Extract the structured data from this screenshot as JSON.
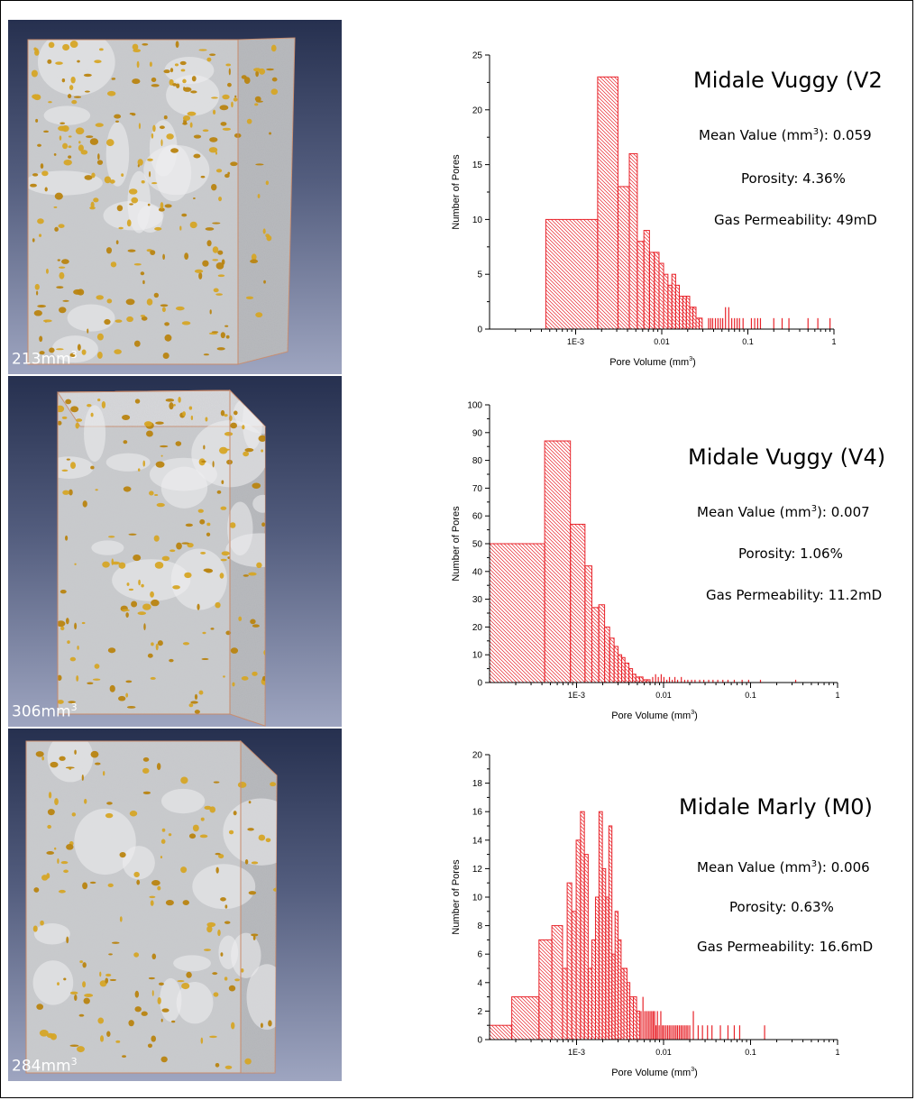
{
  "samples": [
    {
      "name": "Midale Vuggy (V2",
      "volume_label": "213mm",
      "volume_exp": "3",
      "mean_label": "Mean Value (mm",
      "mean_exp": "3",
      "mean_value": "): 0.059",
      "porosity": "Porosity: 4.36%",
      "permeability": "Gas Permeability: 49mD"
    },
    {
      "name": "Midale Vuggy (V4)",
      "volume_label": "306mm",
      "volume_exp": "3",
      "mean_label": "Mean Value (mm",
      "mean_exp": "3",
      "mean_value": "): 0.007",
      "porosity": "Porosity: 1.06%",
      "permeability": "Gas Permeability: 11.2mD"
    },
    {
      "name": "Midale Marly (M0)",
      "volume_label": "284mm",
      "volume_exp": "3",
      "mean_label": "Mean Value (mm",
      "mean_exp": "3",
      "mean_value": "): 0.006",
      "porosity": "Porosity: 0.63%",
      "permeability": "Gas Permeability: 16.6mD"
    }
  ],
  "colors": {
    "bar": "#e8232a",
    "sky_top": "#26304f",
    "sky_bottom": "#9ea5c0",
    "pore": "#d6a526"
  },
  "chart_data": [
    {
      "type": "bar",
      "xlabel": "Pore Volume (mm",
      "xlabel_exp": "3",
      "xlabel_end": ")",
      "ylabel": "Number of Pores",
      "x_scale": "log",
      "xlim": [
        0.0001,
        1
      ],
      "ylim": [
        0,
        25
      ],
      "yticks": [
        0,
        5,
        10,
        15,
        20,
        25
      ],
      "xticks": [
        {
          "v": 0.001,
          "label": "1E-3"
        },
        {
          "v": 0.01,
          "label": "0.01"
        },
        {
          "v": 0.1,
          "label": "0.1"
        },
        {
          "v": 1,
          "label": "1"
        }
      ],
      "bins": [
        {
          "x0": 0.00045,
          "x1": 0.0018,
          "y": 10
        },
        {
          "x0": 0.0018,
          "x1": 0.0031,
          "y": 23
        },
        {
          "x0": 0.0031,
          "x1": 0.0042,
          "y": 13
        },
        {
          "x0": 0.0042,
          "x1": 0.0052,
          "y": 16
        },
        {
          "x0": 0.0052,
          "x1": 0.0062,
          "y": 8
        },
        {
          "x0": 0.0062,
          "x1": 0.0072,
          "y": 9
        },
        {
          "x0": 0.0072,
          "x1": 0.0082,
          "y": 7
        },
        {
          "x0": 0.0082,
          "x1": 0.0093,
          "y": 7
        },
        {
          "x0": 0.0093,
          "x1": 0.0105,
          "y": 6
        },
        {
          "x0": 0.0105,
          "x1": 0.0118,
          "y": 5
        },
        {
          "x0": 0.0118,
          "x1": 0.0131,
          "y": 4
        },
        {
          "x0": 0.0131,
          "x1": 0.0145,
          "y": 5
        },
        {
          "x0": 0.0145,
          "x1": 0.016,
          "y": 4
        },
        {
          "x0": 0.016,
          "x1": 0.0176,
          "y": 3
        },
        {
          "x0": 0.0176,
          "x1": 0.0193,
          "y": 3
        },
        {
          "x0": 0.0193,
          "x1": 0.0211,
          "y": 3
        },
        {
          "x0": 0.0211,
          "x1": 0.023,
          "y": 2
        },
        {
          "x0": 0.023,
          "x1": 0.025,
          "y": 2
        },
        {
          "x0": 0.025,
          "x1": 0.0272,
          "y": 1
        },
        {
          "x0": 0.0272,
          "x1": 0.0295,
          "y": 1
        }
      ],
      "spikes": [
        {
          "x": 0.035,
          "y": 1
        },
        {
          "x": 0.037,
          "y": 1
        },
        {
          "x": 0.039,
          "y": 1
        },
        {
          "x": 0.042,
          "y": 1
        },
        {
          "x": 0.045,
          "y": 1
        },
        {
          "x": 0.048,
          "y": 1
        },
        {
          "x": 0.051,
          "y": 1
        },
        {
          "x": 0.055,
          "y": 2
        },
        {
          "x": 0.06,
          "y": 2
        },
        {
          "x": 0.065,
          "y": 1
        },
        {
          "x": 0.07,
          "y": 1
        },
        {
          "x": 0.075,
          "y": 1
        },
        {
          "x": 0.08,
          "y": 1
        },
        {
          "x": 0.088,
          "y": 1
        },
        {
          "x": 0.11,
          "y": 1
        },
        {
          "x": 0.12,
          "y": 1
        },
        {
          "x": 0.13,
          "y": 1
        },
        {
          "x": 0.14,
          "y": 1
        },
        {
          "x": 0.2,
          "y": 1
        },
        {
          "x": 0.25,
          "y": 1
        },
        {
          "x": 0.3,
          "y": 1
        },
        {
          "x": 0.5,
          "y": 1
        },
        {
          "x": 0.65,
          "y": 1
        },
        {
          "x": 0.9,
          "y": 1
        }
      ]
    },
    {
      "type": "bar",
      "xlabel": "Pore Volume (mm",
      "xlabel_exp": "3",
      "xlabel_end": ")",
      "ylabel": "Number of Pores",
      "x_scale": "log",
      "xlim": [
        0.0001,
        1
      ],
      "ylim": [
        0,
        100
      ],
      "yticks": [
        0,
        10,
        20,
        30,
        40,
        50,
        60,
        70,
        80,
        90,
        100
      ],
      "xticks": [
        {
          "v": 0.001,
          "label": "1E-3"
        },
        {
          "v": 0.01,
          "label": "0.01"
        },
        {
          "v": 0.1,
          "label": "0.1"
        },
        {
          "v": 1,
          "label": "1"
        }
      ],
      "bins": [
        {
          "x0": 0.0001,
          "x1": 0.00043,
          "y": 50
        },
        {
          "x0": 0.00043,
          "x1": 0.00085,
          "y": 87
        },
        {
          "x0": 0.00085,
          "x1": 0.00125,
          "y": 57
        },
        {
          "x0": 0.00125,
          "x1": 0.0015,
          "y": 42
        },
        {
          "x0": 0.0015,
          "x1": 0.0018,
          "y": 27
        },
        {
          "x0": 0.0018,
          "x1": 0.0021,
          "y": 28
        },
        {
          "x0": 0.0021,
          "x1": 0.0024,
          "y": 20
        },
        {
          "x0": 0.0024,
          "x1": 0.0027,
          "y": 16
        },
        {
          "x0": 0.0027,
          "x1": 0.003,
          "y": 13
        },
        {
          "x0": 0.003,
          "x1": 0.0033,
          "y": 10
        },
        {
          "x0": 0.0033,
          "x1": 0.0036,
          "y": 9
        },
        {
          "x0": 0.0036,
          "x1": 0.004,
          "y": 7
        },
        {
          "x0": 0.004,
          "x1": 0.0044,
          "y": 5
        },
        {
          "x0": 0.0044,
          "x1": 0.0048,
          "y": 3
        },
        {
          "x0": 0.0048,
          "x1": 0.0053,
          "y": 2
        },
        {
          "x0": 0.0053,
          "x1": 0.0058,
          "y": 2
        },
        {
          "x0": 0.0058,
          "x1": 0.0064,
          "y": 1
        },
        {
          "x0": 0.0064,
          "x1": 0.007,
          "y": 1
        }
      ],
      "spikes": [
        {
          "x": 0.0075,
          "y": 2
        },
        {
          "x": 0.0081,
          "y": 3
        },
        {
          "x": 0.0087,
          "y": 2
        },
        {
          "x": 0.0094,
          "y": 3
        },
        {
          "x": 0.0101,
          "y": 2
        },
        {
          "x": 0.0109,
          "y": 1
        },
        {
          "x": 0.0117,
          "y": 2
        },
        {
          "x": 0.0126,
          "y": 1
        },
        {
          "x": 0.0135,
          "y": 2
        },
        {
          "x": 0.0145,
          "y": 1
        },
        {
          "x": 0.016,
          "y": 2
        },
        {
          "x": 0.0175,
          "y": 1
        },
        {
          "x": 0.019,
          "y": 1
        },
        {
          "x": 0.021,
          "y": 1
        },
        {
          "x": 0.023,
          "y": 1
        },
        {
          "x": 0.026,
          "y": 1
        },
        {
          "x": 0.029,
          "y": 1
        },
        {
          "x": 0.033,
          "y": 1
        },
        {
          "x": 0.037,
          "y": 1
        },
        {
          "x": 0.042,
          "y": 1
        },
        {
          "x": 0.048,
          "y": 1
        },
        {
          "x": 0.055,
          "y": 1
        },
        {
          "x": 0.065,
          "y": 1
        },
        {
          "x": 0.08,
          "y": 1
        },
        {
          "x": 0.095,
          "y": 1
        },
        {
          "x": 0.13,
          "y": 1
        },
        {
          "x": 0.33,
          "y": 1
        }
      ]
    },
    {
      "type": "bar",
      "xlabel": "Pore Volume (mm",
      "xlabel_exp": "3",
      "xlabel_end": ")",
      "ylabel": "Number of Pores",
      "x_scale": "log",
      "xlim": [
        0.0001,
        1
      ],
      "ylim": [
        0,
        20
      ],
      "yticks": [
        0,
        2,
        4,
        6,
        8,
        10,
        12,
        14,
        16,
        18,
        20
      ],
      "xticks": [
        {
          "v": 0.001,
          "label": "1E-3"
        },
        {
          "v": 0.01,
          "label": "0.01"
        },
        {
          "v": 0.1,
          "label": "0.1"
        },
        {
          "v": 1,
          "label": "1"
        }
      ],
      "bins": [
        {
          "x0": 0.0001,
          "x1": 0.00018,
          "y": 1
        },
        {
          "x0": 0.00018,
          "x1": 0.00037,
          "y": 3
        },
        {
          "x0": 0.00037,
          "x1": 0.00052,
          "y": 7
        },
        {
          "x0": 0.00052,
          "x1": 0.00069,
          "y": 8
        },
        {
          "x0": 0.00069,
          "x1": 0.00078,
          "y": 5
        },
        {
          "x0": 0.00078,
          "x1": 0.00088,
          "y": 11
        },
        {
          "x0": 0.00088,
          "x1": 0.00099,
          "y": 9
        },
        {
          "x0": 0.00099,
          "x1": 0.00111,
          "y": 14
        },
        {
          "x0": 0.00111,
          "x1": 0.00123,
          "y": 16
        },
        {
          "x0": 0.00123,
          "x1": 0.00136,
          "y": 13
        },
        {
          "x0": 0.00136,
          "x1": 0.0015,
          "y": 5
        },
        {
          "x0": 0.0015,
          "x1": 0.00165,
          "y": 7
        },
        {
          "x0": 0.00165,
          "x1": 0.00181,
          "y": 10
        },
        {
          "x0": 0.00181,
          "x1": 0.00198,
          "y": 16
        },
        {
          "x0": 0.00198,
          "x1": 0.00216,
          "y": 12
        },
        {
          "x0": 0.00216,
          "x1": 0.00235,
          "y": 10
        },
        {
          "x0": 0.00235,
          "x1": 0.00255,
          "y": 15
        },
        {
          "x0": 0.00255,
          "x1": 0.00277,
          "y": 6
        },
        {
          "x0": 0.00277,
          "x1": 0.003,
          "y": 9
        },
        {
          "x0": 0.003,
          "x1": 0.00325,
          "y": 7
        },
        {
          "x0": 0.00325,
          "x1": 0.0035,
          "y": 5
        },
        {
          "x0": 0.0035,
          "x1": 0.0038,
          "y": 5
        },
        {
          "x0": 0.0038,
          "x1": 0.0041,
          "y": 4
        },
        {
          "x0": 0.0041,
          "x1": 0.0045,
          "y": 3
        },
        {
          "x0": 0.0045,
          "x1": 0.0049,
          "y": 3
        },
        {
          "x0": 0.0049,
          "x1": 0.0053,
          "y": 2
        }
      ],
      "spikes": [
        {
          "x": 0.0055,
          "y": 2
        },
        {
          "x": 0.0058,
          "y": 3
        },
        {
          "x": 0.0061,
          "y": 2
        },
        {
          "x": 0.0064,
          "y": 2
        },
        {
          "x": 0.0067,
          "y": 2
        },
        {
          "x": 0.007,
          "y": 2
        },
        {
          "x": 0.0073,
          "y": 2
        },
        {
          "x": 0.0076,
          "y": 2
        },
        {
          "x": 0.0079,
          "y": 2
        },
        {
          "x": 0.0082,
          "y": 1
        },
        {
          "x": 0.0085,
          "y": 2
        },
        {
          "x": 0.0089,
          "y": 1
        },
        {
          "x": 0.0093,
          "y": 2
        },
        {
          "x": 0.0097,
          "y": 1
        },
        {
          "x": 0.0101,
          "y": 1
        },
        {
          "x": 0.0106,
          "y": 1
        },
        {
          "x": 0.0111,
          "y": 1
        },
        {
          "x": 0.0116,
          "y": 1
        },
        {
          "x": 0.0121,
          "y": 1
        },
        {
          "x": 0.0127,
          "y": 1
        },
        {
          "x": 0.0133,
          "y": 1
        },
        {
          "x": 0.0139,
          "y": 1
        },
        {
          "x": 0.0145,
          "y": 1
        },
        {
          "x": 0.0152,
          "y": 1
        },
        {
          "x": 0.0159,
          "y": 1
        },
        {
          "x": 0.0166,
          "y": 1
        },
        {
          "x": 0.0174,
          "y": 1
        },
        {
          "x": 0.0182,
          "y": 1
        },
        {
          "x": 0.019,
          "y": 1
        },
        {
          "x": 0.02,
          "y": 1
        },
        {
          "x": 0.022,
          "y": 2
        },
        {
          "x": 0.025,
          "y": 1
        },
        {
          "x": 0.028,
          "y": 1
        },
        {
          "x": 0.032,
          "y": 1
        },
        {
          "x": 0.036,
          "y": 1
        },
        {
          "x": 0.045,
          "y": 1
        },
        {
          "x": 0.055,
          "y": 1
        },
        {
          "x": 0.065,
          "y": 1
        },
        {
          "x": 0.075,
          "y": 1
        },
        {
          "x": 0.145,
          "y": 1
        }
      ]
    }
  ]
}
